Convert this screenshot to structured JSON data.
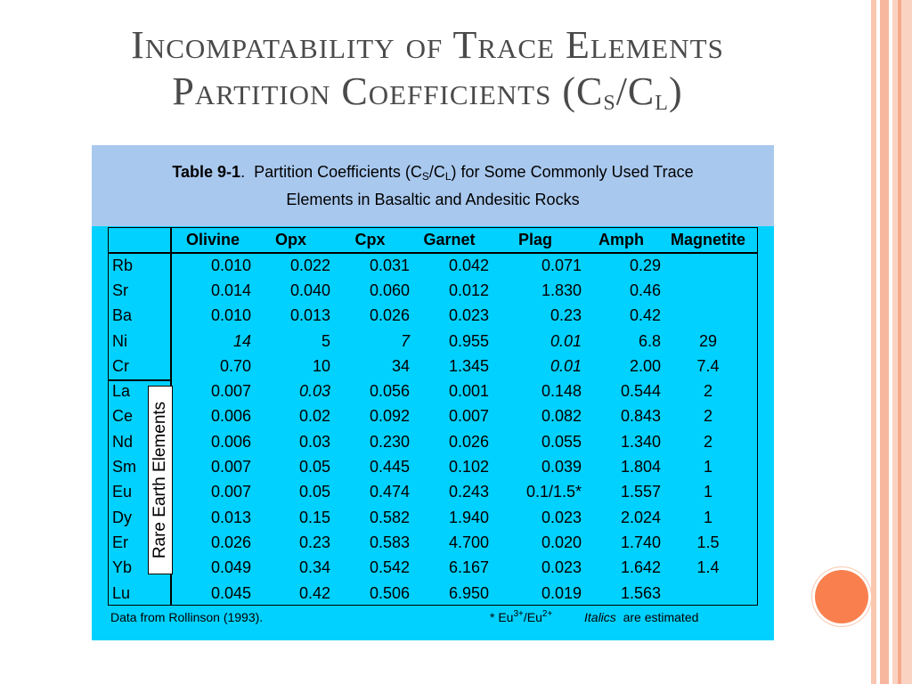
{
  "title": {
    "line1": "Incompatability of Trace Elements",
    "line2_prefix": "Partition Coefficients (C",
    "line2_sub1": "S",
    "line2_mid": "/C",
    "line2_sub2": "L",
    "line2_suffix": ")"
  },
  "caption": {
    "label": "Table 9-1",
    "dot": ".",
    "text1": "Partition Coefficients (C",
    "sub1": "S",
    "text2": "/C",
    "sub2": "L",
    "text3": ") for Some Commonly Used Trace",
    "text4": "Elements in Basaltic and Andesitic Rocks"
  },
  "table": {
    "headers": [
      "",
      "Olivine",
      "Opx",
      "Cpx",
      "Garnet",
      "Plag",
      "Amph",
      "Magnetite"
    ],
    "rows": [
      [
        "Rb",
        "0.010",
        "0.022",
        "0.031",
        "0.042",
        "0.071",
        "0.29",
        ""
      ],
      [
        "Sr",
        "0.014",
        "0.040",
        "0.060",
        "0.012",
        "1.830",
        "0.46",
        ""
      ],
      [
        "Ba",
        "0.010",
        "0.013",
        "0.026",
        "0.023",
        "0.23",
        "0.42",
        ""
      ],
      [
        "Ni",
        "14",
        "5",
        "7",
        "0.955",
        "0.01",
        "6.8",
        "29"
      ],
      [
        "Cr",
        "0.70",
        "10",
        "34",
        "1.345",
        "0.01",
        "2.00",
        "7.4"
      ],
      [
        "La",
        "0.007",
        "0.03",
        "0.056",
        "0.001",
        "0.148",
        "0.544",
        "2"
      ],
      [
        "Ce",
        "0.006",
        "0.02",
        "0.092",
        "0.007",
        "0.082",
        "0.843",
        "2"
      ],
      [
        "Nd",
        "0.006",
        "0.03",
        "0.230",
        "0.026",
        "0.055",
        "1.340",
        "2"
      ],
      [
        "Sm",
        "0.007",
        "0.05",
        "0.445",
        "0.102",
        "0.039",
        "1.804",
        "1"
      ],
      [
        "Eu",
        "0.007",
        "0.05",
        "0.474",
        "0.243",
        "0.1/1.5*",
        "1.557",
        "1"
      ],
      [
        "Dy",
        "0.013",
        "0.15",
        "0.582",
        "1.940",
        "0.023",
        "2.024",
        "1"
      ],
      [
        "Er",
        "0.026",
        "0.23",
        "0.583",
        "4.700",
        "0.020",
        "1.740",
        "1.5"
      ],
      [
        "Yb",
        "0.049",
        "0.34",
        "0.542",
        "6.167",
        "0.023",
        "1.642",
        "1.4"
      ],
      [
        "Lu",
        "0.045",
        "0.42",
        "0.506",
        "6.950",
        "0.019",
        "1.563",
        ""
      ]
    ],
    "italic_cells": [
      [
        3,
        1
      ],
      [
        3,
        3
      ],
      [
        3,
        5
      ],
      [
        4,
        5
      ],
      [
        5,
        2
      ]
    ],
    "ree_label": "Rare Earth Elements"
  },
  "footer": {
    "source": "Data from Rollinson (1993).",
    "note_prefix": "* Eu",
    "note_sup1": "3+",
    "note_mid": "/Eu",
    "note_sup2": "2+",
    "italics_word": "Italics",
    "italics_rest": "are estimated"
  }
}
